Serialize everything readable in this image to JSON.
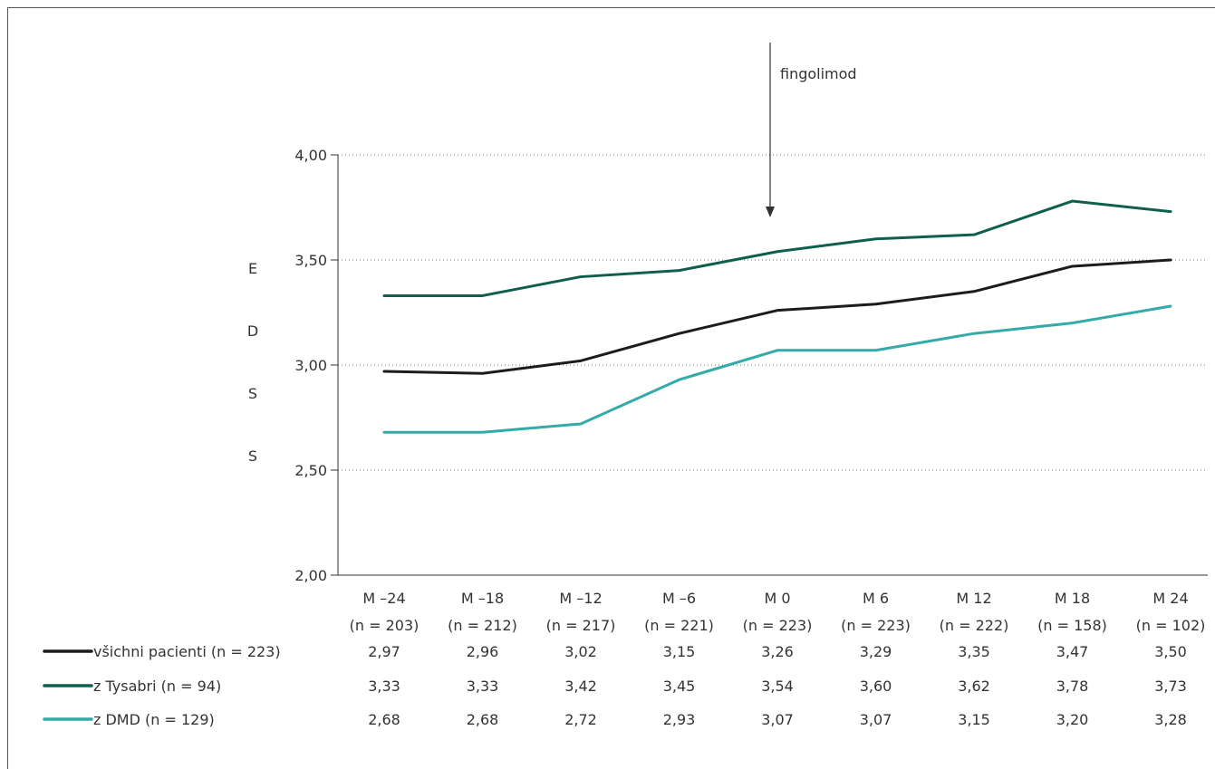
{
  "chart_data": {
    "type": "line",
    "ylabel": "EDSS",
    "ylim": [
      2.0,
      4.0
    ],
    "yticks": [
      "2,00",
      "2,50",
      "3,00",
      "3,50",
      "4,00"
    ],
    "ytick_values": [
      2.0,
      2.5,
      3.0,
      3.5,
      4.0
    ],
    "grid": "dotted horizontal",
    "categories": [
      "M –24",
      "M –18",
      "M –12",
      "M –6",
      "M 0",
      "M 6",
      "M 12",
      "M 18",
      "M 24"
    ],
    "category_n": [
      "(n = 203)",
      "(n = 212)",
      "(n = 217)",
      "(n = 221)",
      "(n = 223)",
      "(n = 223)",
      "(n = 222)",
      "(n = 158)",
      "(n = 102)"
    ],
    "annotation": {
      "text": "fingolimod",
      "category_index": 4
    },
    "series": [
      {
        "name": "všichni pacienti (n = 223)",
        "color": "#1c1c1c",
        "values": [
          2.97,
          2.96,
          3.02,
          3.15,
          3.26,
          3.29,
          3.35,
          3.47,
          3.5
        ],
        "labels": [
          "2,97",
          "2,96",
          "3,02",
          "3,15",
          "3,26",
          "3,29",
          "3,35",
          "3,47",
          "3,50"
        ]
      },
      {
        "name": "z Tysabri (n = 94)",
        "color": "#0e5f4e",
        "values": [
          3.33,
          3.33,
          3.42,
          3.45,
          3.54,
          3.6,
          3.62,
          3.78,
          3.73
        ],
        "labels": [
          "3,33",
          "3,33",
          "3,42",
          "3,45",
          "3,54",
          "3,60",
          "3,62",
          "3,78",
          "3,73"
        ]
      },
      {
        "name": "z DMD (n = 129)",
        "color": "#34aaa9",
        "values": [
          2.68,
          2.68,
          2.72,
          2.93,
          3.07,
          3.07,
          3.15,
          3.2,
          3.28
        ],
        "labels": [
          "2,68",
          "2,68",
          "2,72",
          "2,93",
          "3,07",
          "3,07",
          "3,15",
          "3,20",
          "3,28"
        ]
      }
    ]
  }
}
